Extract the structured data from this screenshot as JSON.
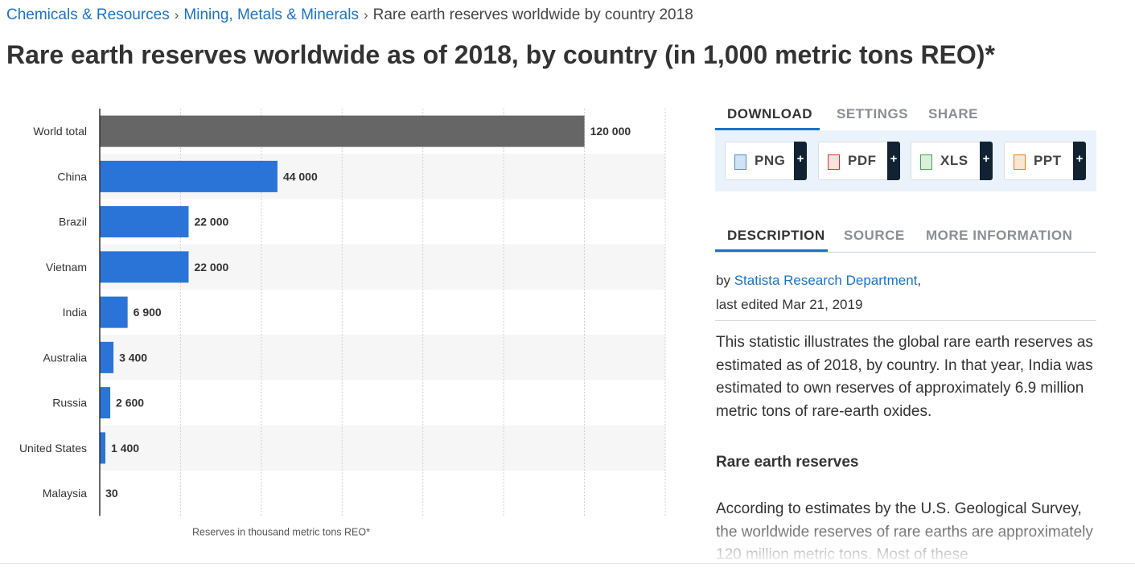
{
  "breadcrumb": {
    "item1": "Chemicals & Resources",
    "item2": "Mining, Metals & Minerals",
    "current": "Rare earth reserves worldwide by country 2018",
    "separator": "›"
  },
  "page_title": "Rare earth reserves worldwide as of 2018, by country (in 1,000 metric tons REO)*",
  "chart_data": {
    "type": "bar",
    "orientation": "horizontal",
    "categories": [
      "World total",
      "China",
      "Brazil",
      "Vietnam",
      "India",
      "Australia",
      "Russia",
      "United States",
      "Malaysia"
    ],
    "values": [
      120000,
      44000,
      22000,
      22000,
      6900,
      3400,
      2600,
      1400,
      30
    ],
    "value_labels": [
      "120 000",
      "44 000",
      "22 000",
      "22 000",
      "6 900",
      "3 400",
      "2 600",
      "1 400",
      "30"
    ],
    "xlabel": "Reserves in thousand metric tons REO*",
    "ylabel": "",
    "xlim": [
      0,
      140000
    ],
    "grid": true,
    "colors": {
      "total": "#666666",
      "default": "#2a74d8"
    }
  },
  "download_tabs": [
    "DOWNLOAD",
    "SETTINGS",
    "SHARE"
  ],
  "download_buttons": [
    {
      "label": "PNG",
      "icon": "png-file-icon",
      "color": "#4a90c8"
    },
    {
      "label": "PDF",
      "icon": "pdf-file-icon",
      "color": "#d9302a"
    },
    {
      "label": "XLS",
      "icon": "xls-file-icon",
      "color": "#3fa34d"
    },
    {
      "label": "PPT",
      "icon": "ppt-file-icon",
      "color": "#e07a1f"
    }
  ],
  "plus_symbol": "+",
  "info_tabs": [
    "DESCRIPTION",
    "SOURCE",
    "MORE INFORMATION"
  ],
  "author": {
    "prefix": "by",
    "name": "Statista Research Department",
    "suffix": ",",
    "edited": "last edited Mar 21, 2019"
  },
  "description": "This statistic illustrates the global rare earth reserves as estimated as of 2018, by country. In that year, India was estimated to own reserves of approximately 6.9 million metric tons of rare-earth oxides.",
  "subheading": "Rare earth reserves",
  "description2": "According to estimates by the U.S. Geological Survey, the worldwide reserves of rare earths are approximately 120 million metric tons. Most of these"
}
